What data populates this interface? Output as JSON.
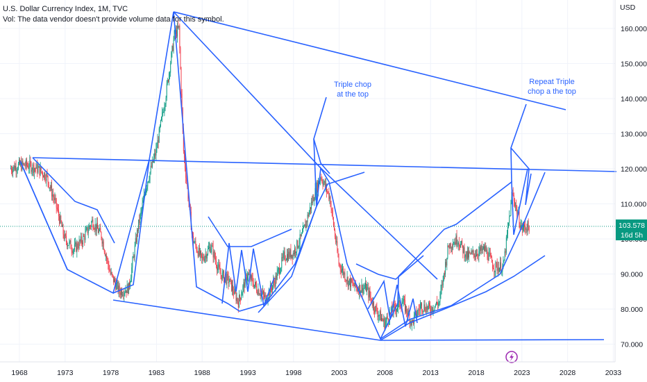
{
  "header": {
    "title": "U.S. Dollar Currency Index, 1M, TVC",
    "volume_note": "Vol: The data vendor doesn't provide volume data for this symbol."
  },
  "axis": {
    "currency": "USD",
    "y_ticks": [
      "160.000",
      "150.000",
      "140.000",
      "130.000",
      "120.000",
      "110.000",
      "100.000",
      "90.000",
      "80.000",
      "70.000"
    ],
    "x_ticks": [
      "1968",
      "1973",
      "1978",
      "1983",
      "1988",
      "1993",
      "1998",
      "2003",
      "2008",
      "2013",
      "2018",
      "2023",
      "2028",
      "2033"
    ]
  },
  "price_label": {
    "price": "103.578",
    "countdown": "16d 5h",
    "color": "#089981"
  },
  "annotations": {
    "note1": [
      "Triple chop",
      "at the top"
    ],
    "note2": [
      "Repeat Triple",
      "chop a the top"
    ]
  },
  "event_icon": "lightning-icon",
  "colors": {
    "up": "#089981",
    "down": "#f23645",
    "drawing": "#2962ff",
    "price_line": "#089981"
  },
  "chart_data": {
    "type": "line",
    "symbol": "DXY",
    "interval": "1M",
    "ylim": [
      67.5,
      165
    ],
    "xlim": [
      1967,
      2035.5
    ],
    "grid": true,
    "last_price": 103.578,
    "series": [
      {
        "x": [
          1967,
          1968,
          1969,
          1970,
          1971,
          1972,
          1973,
          1974,
          1975,
          1976,
          1977,
          1978,
          1979,
          1980,
          1981,
          1982,
          1983,
          1984,
          1985,
          1985.5,
          1986,
          1987,
          1988,
          1989,
          1990,
          1991,
          1992,
          1993,
          1994,
          1995,
          1996,
          1997,
          1998,
          1999,
          2000,
          2001,
          2002,
          2003,
          2004,
          2005,
          2006,
          2007,
          2008,
          2009,
          2010,
          2011,
          2012,
          2013,
          2014,
          2015,
          2016,
          2017,
          2018,
          2019,
          2020,
          2021,
          2022,
          2023,
          2023.8
        ],
        "y": [
          120,
          121,
          121,
          120,
          118,
          110,
          100,
          97,
          100,
          105,
          101,
          90,
          85,
          86,
          103,
          116,
          125,
          140,
          158,
          160,
          125,
          100,
          94,
          98,
          90,
          88,
          82,
          90,
          86,
          83,
          88,
          95,
          96,
          101,
          110,
          118,
          112,
          93,
          88,
          86,
          86,
          80,
          76,
          80,
          82,
          76,
          81,
          80,
          82,
          98,
          100,
          95,
          96,
          97,
          92,
          92,
          113,
          103,
          103.578
        ]
      }
    ]
  }
}
